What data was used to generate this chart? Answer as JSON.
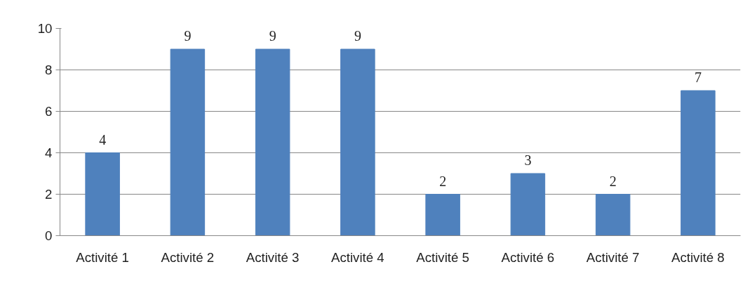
{
  "chart_data": {
    "type": "bar",
    "categories": [
      "Activité 1",
      "Activité 2",
      "Activité 3",
      "Activité 4",
      "Activité 5",
      "Activité 6",
      "Activité 7",
      "Activité 8"
    ],
    "values": [
      4,
      9,
      9,
      9,
      2,
      3,
      2,
      7
    ],
    "color": "#4f81bd",
    "ylim": [
      0,
      10
    ],
    "yticks": [
      0,
      2,
      4,
      6,
      8,
      10
    ],
    "grid": "y",
    "data_labels": true
  }
}
